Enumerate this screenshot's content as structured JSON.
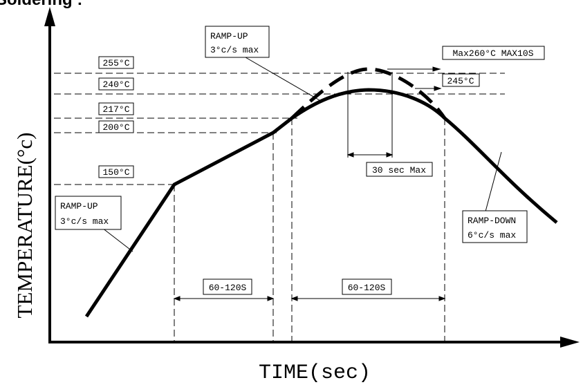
{
  "title": "Soldering :",
  "axes": {
    "y_label": "TEMPERATURE(°c)",
    "x_label": "TIME(sec)"
  },
  "temperature_labels": [
    "255°C",
    "240°C",
    "217°C",
    "200°C",
    "150°C"
  ],
  "peak_labels": {
    "max": "Max260°C MAX10S",
    "secondary": "245°C"
  },
  "ramp_up_top": {
    "line1": "RAMP-UP",
    "line2": "3°c/s max"
  },
  "ramp_up_bottom": {
    "line1": "RAMP-UP",
    "line2": "3°c/s max"
  },
  "ramp_down": {
    "line1": "RAMP-DOWN",
    "line2": "6°c/s max"
  },
  "durations": {
    "peak_hold": "30 sec Max",
    "preheat": "60-120S",
    "reflow": "60-120S"
  }
}
